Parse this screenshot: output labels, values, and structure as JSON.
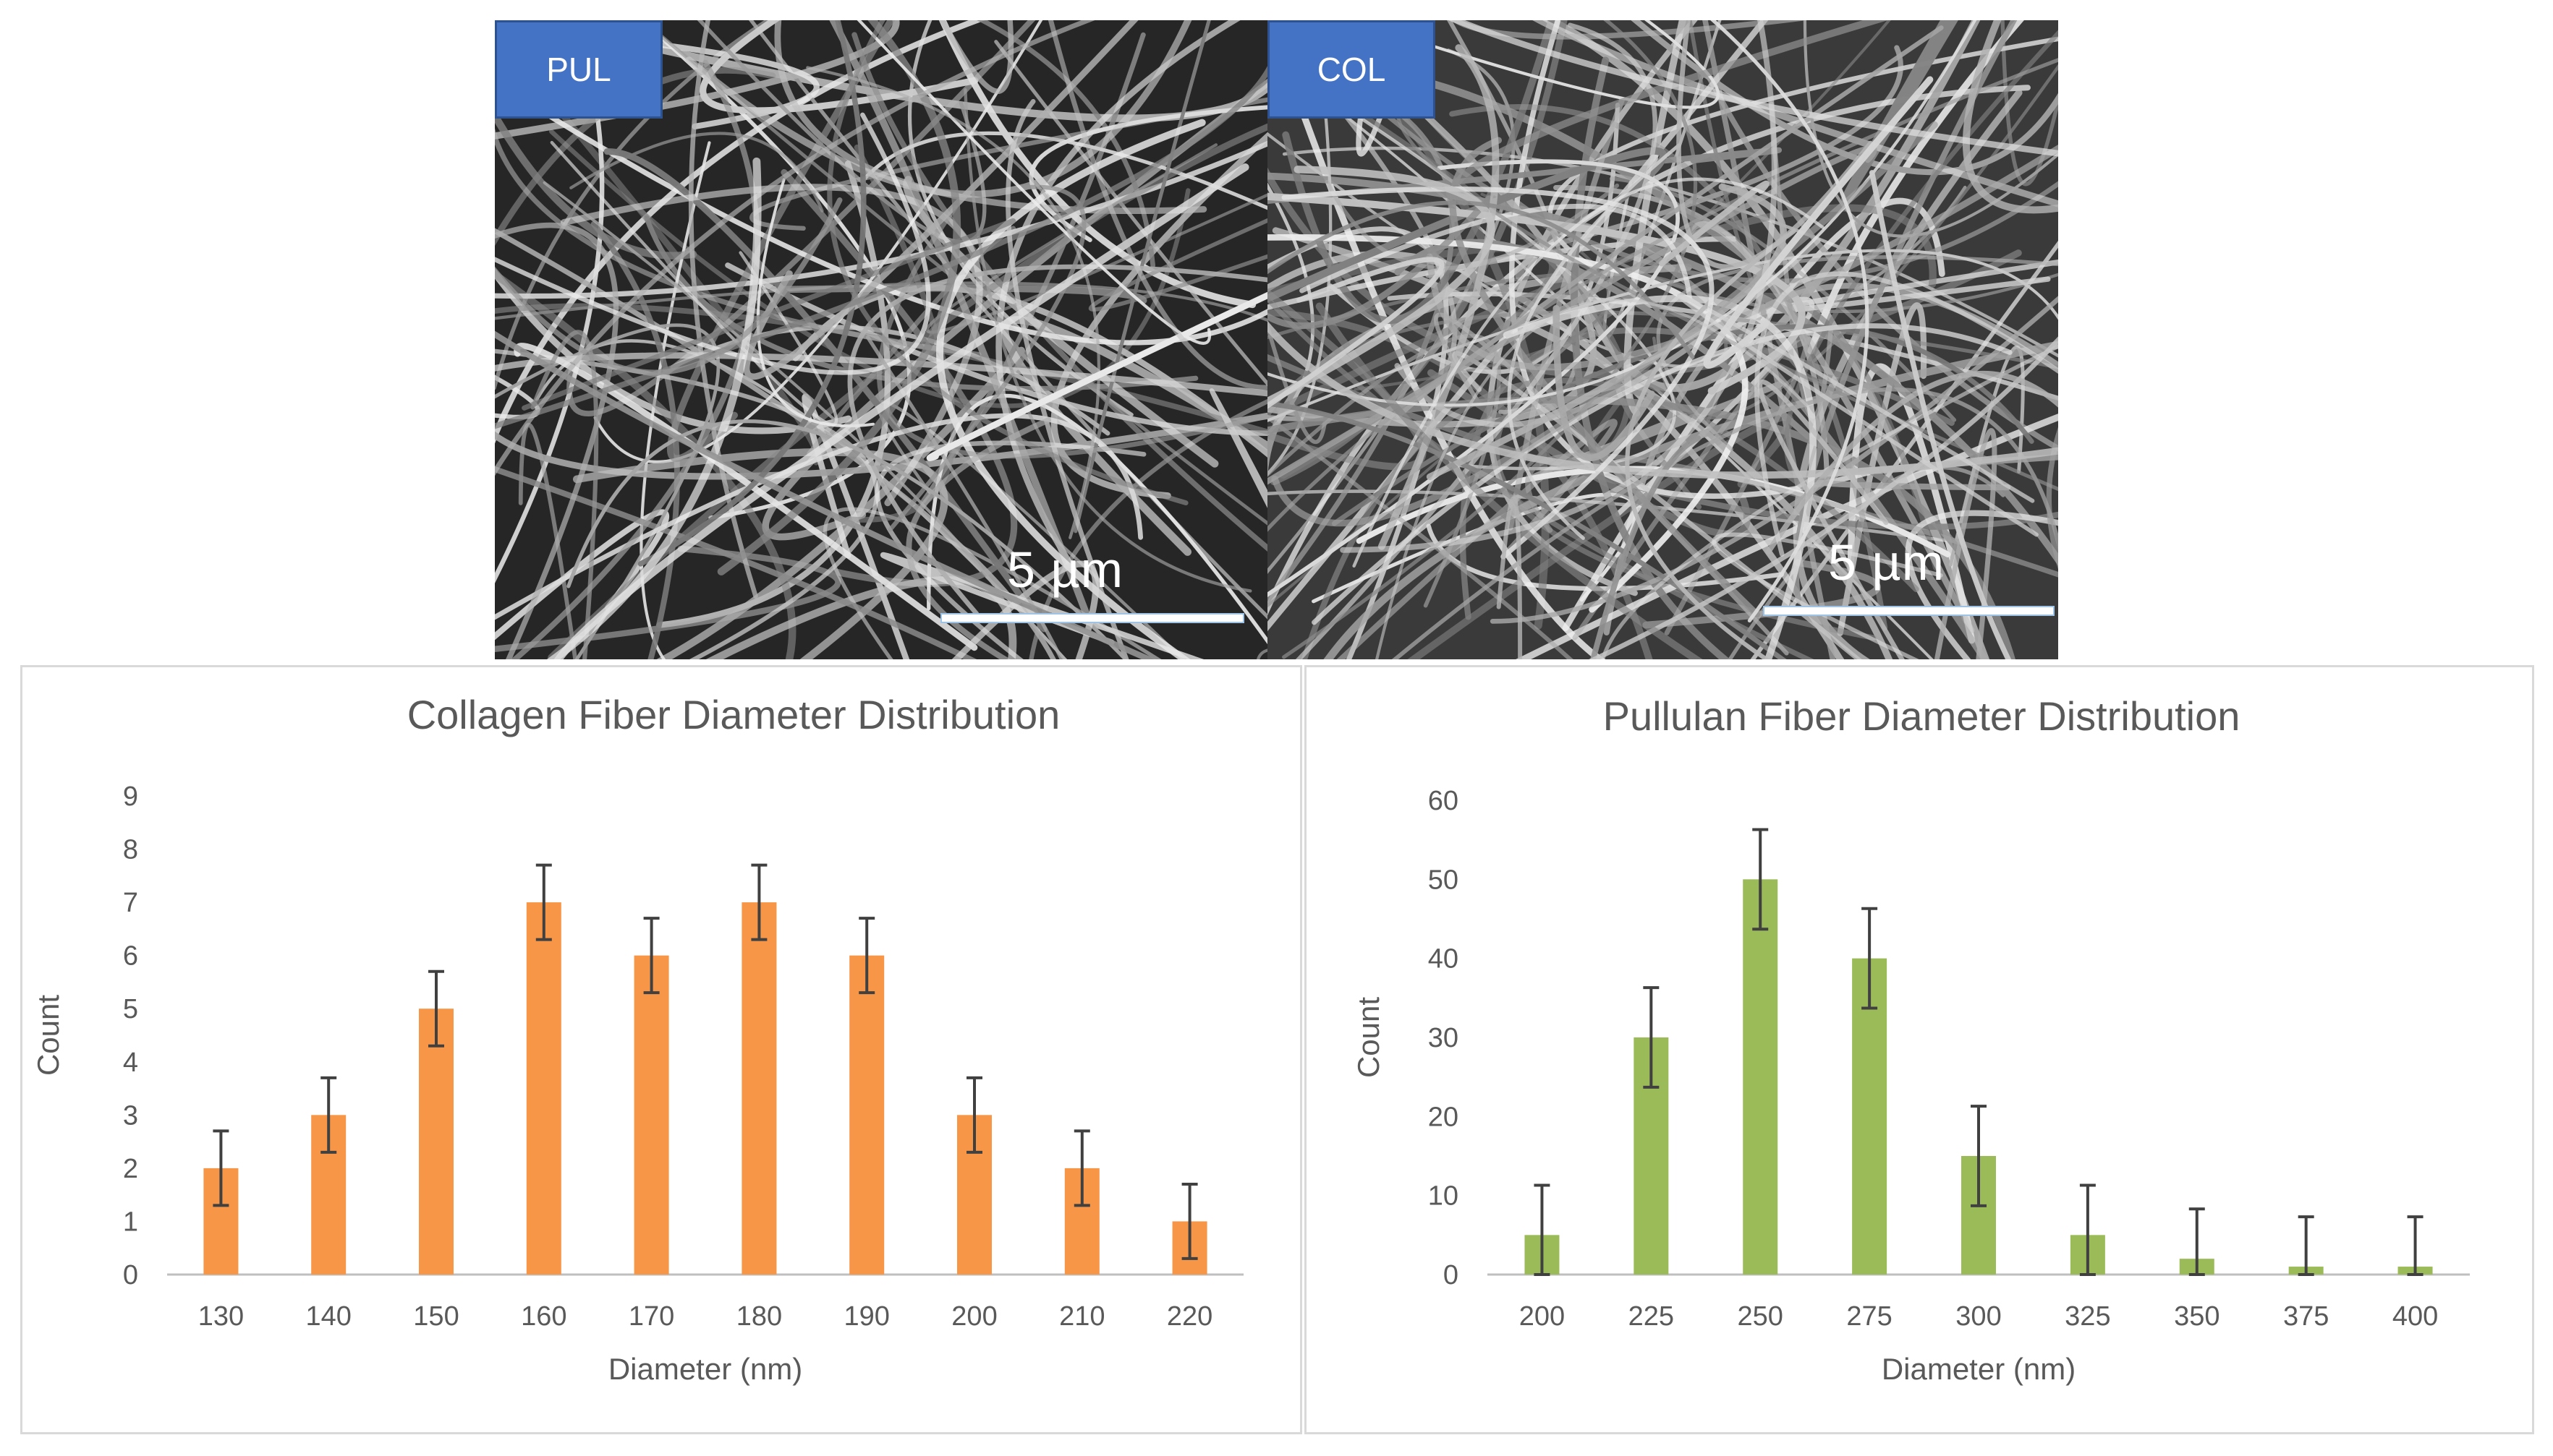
{
  "images": {
    "left": {
      "label": "PUL",
      "scale": "5 µm"
    },
    "right": {
      "label": "COL",
      "scale": "5 µm"
    }
  },
  "colors": {
    "tag_fill": "#4472c4",
    "collagen_bar": "#f79646",
    "pullulan_bar": "#9bbb59",
    "text": "#595959"
  },
  "chart_data": [
    {
      "type": "bar",
      "title": "Collagen Fiber Diameter Distribution",
      "xlabel": "Diameter (nm)",
      "ylabel": "Count",
      "categories": [
        "130",
        "140",
        "150",
        "160",
        "170",
        "180",
        "190",
        "200",
        "210",
        "220"
      ],
      "values": [
        2,
        3,
        5,
        7,
        6,
        7,
        6,
        3,
        2,
        1
      ],
      "error_plus_minus": [
        0.7,
        0.7,
        0.7,
        0.7,
        0.7,
        0.7,
        0.7,
        0.7,
        0.7,
        0.7
      ],
      "ylim": [
        0,
        9
      ],
      "yticks": [
        0,
        1,
        2,
        3,
        4,
        5,
        6,
        7,
        8,
        9
      ],
      "color": "#f79646",
      "grid": false,
      "legend": "none"
    },
    {
      "type": "bar",
      "title": "Pullulan Fiber Diameter Distribution",
      "xlabel": "Diameter (nm)",
      "ylabel": "Count",
      "categories": [
        "200",
        "225",
        "250",
        "275",
        "300",
        "325",
        "350",
        "375",
        "400"
      ],
      "values": [
        5,
        30,
        50,
        40,
        15,
        5,
        2,
        1,
        1
      ],
      "error_plus_minus": [
        6.3,
        6.3,
        6.3,
        6.3,
        6.3,
        6.3,
        6.3,
        6.3,
        6.3
      ],
      "ylim": [
        0,
        60
      ],
      "yticks": [
        0,
        10,
        20,
        30,
        40,
        50,
        60
      ],
      "color": "#9bbb59",
      "grid": false,
      "legend": "none"
    }
  ]
}
